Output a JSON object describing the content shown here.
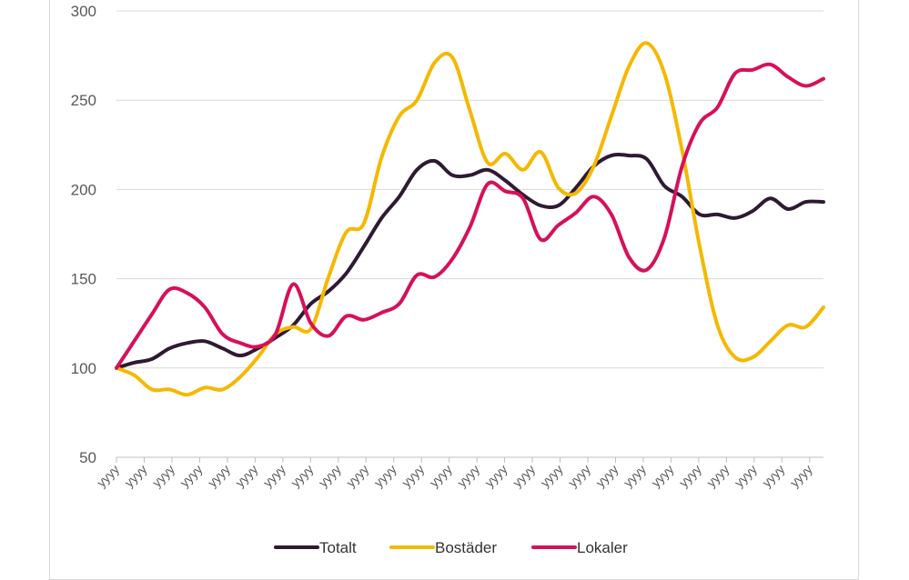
{
  "chart_data": {
    "type": "line",
    "title": "",
    "xlabel": "",
    "ylabel": "",
    "ylim": [
      50,
      300
    ],
    "yticks": [
      50,
      100,
      150,
      200,
      250,
      300
    ],
    "grid": true,
    "legend_position": "bottom",
    "x_tick_labels": [
      "yyyy",
      "yyyy",
      "yyyy",
      "yyyy",
      "yyyy",
      "yyyy",
      "yyyy",
      "yyyy",
      "yyyy",
      "yyyy",
      "yyyy",
      "yyyy",
      "yyyy",
      "yyyy",
      "yyyy",
      "yyyy",
      "yyyy",
      "yyyy",
      "yyyy",
      "yyyy",
      "yyyy",
      "yyyy",
      "yyyy",
      "yyyy",
      "yyyy",
      "yyyy"
    ],
    "series": [
      {
        "name": "Totalt",
        "color": "#2e1a33",
        "values": [
          100,
          103,
          105,
          111,
          114,
          115,
          111,
          107,
          111,
          117,
          124,
          136,
          143,
          153,
          168,
          184,
          196,
          211,
          216,
          208,
          208,
          211,
          205,
          197,
          191,
          191,
          201,
          213,
          219,
          219,
          217,
          202,
          196,
          186,
          186,
          184,
          188,
          195,
          189,
          193,
          193
        ]
      },
      {
        "name": "Bostäder",
        "color": "#f5b800",
        "values": [
          100,
          96,
          88,
          88,
          85,
          89,
          88,
          95,
          106,
          119,
          123,
          122,
          151,
          176,
          181,
          218,
          241,
          250,
          271,
          274,
          244,
          215,
          220,
          211,
          221,
          201,
          198,
          213,
          241,
          269,
          282,
          265,
          222,
          168,
          124,
          106,
          106,
          115,
          124,
          123,
          134
        ]
      },
      {
        "name": "Lokaler",
        "color": "#d6105b",
        "values": [
          100,
          115,
          130,
          144,
          142,
          134,
          119,
          114,
          112,
          119,
          147,
          125,
          118,
          129,
          127,
          131,
          136,
          152,
          151,
          161,
          179,
          203,
          199,
          195,
          172,
          180,
          187,
          196,
          186,
          162,
          155,
          173,
          213,
          237,
          246,
          265,
          267,
          270,
          263,
          258,
          262
        ]
      }
    ]
  }
}
